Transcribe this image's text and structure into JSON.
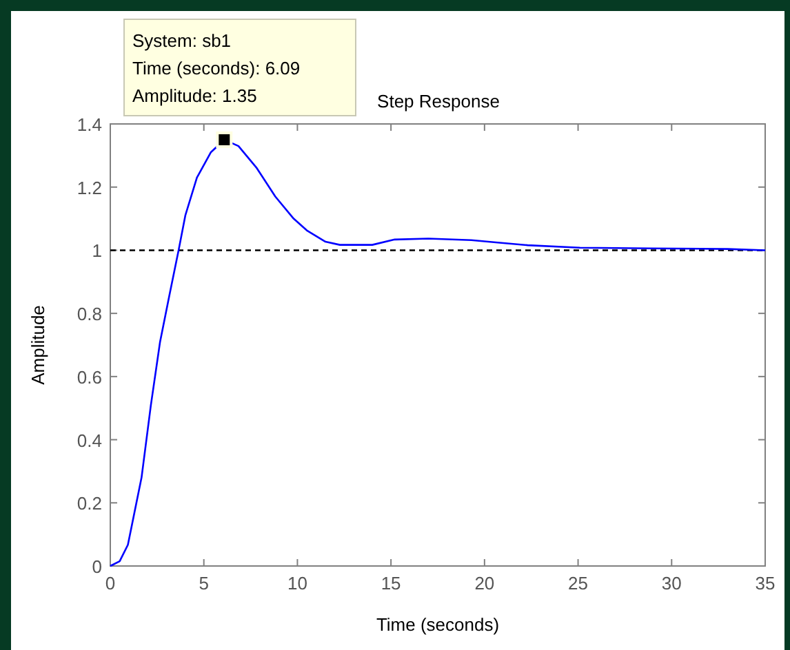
{
  "chart_data": {
    "type": "line",
    "title": "Step Response",
    "xlabel": "Time (seconds)",
    "ylabel": "Amplitude",
    "x": [
      0,
      0.5,
      0.94,
      1.67,
      2.17,
      2.66,
      3.15,
      3.65,
      4.01,
      4.63,
      5.37,
      6.09,
      6.85,
      7.83,
      8.82,
      9.8,
      10.5,
      11.5,
      12.27,
      14.0,
      15.2,
      17,
      19.3,
      20.6,
      22.3,
      25.1,
      29,
      33,
      35
    ],
    "series": [
      {
        "color": "#0000ff",
        "values": [
          0,
          0.015,
          0.067,
          0.28,
          0.51,
          0.71,
          0.855,
          1.0,
          1.11,
          1.23,
          1.31,
          1.35,
          1.33,
          1.26,
          1.17,
          1.1,
          1.063,
          1.027,
          1.017,
          1.017,
          1.034,
          1.037,
          1.032,
          1.025,
          1.016,
          1.008,
          1.006,
          1.004,
          1.0
        ]
      }
    ],
    "xlim": [
      0,
      35
    ],
    "xticks": [
      0,
      5,
      10,
      15,
      20,
      25,
      30,
      35
    ],
    "ylim": [
      0,
      1.4
    ],
    "yticks": [
      0,
      0.2,
      0.4,
      0.6,
      0.8,
      1,
      1.2,
      1.4
    ],
    "ref_lines": [
      {
        "axis": "y",
        "value": 1,
        "color": "#000000",
        "line_style": "dashed"
      }
    ],
    "annotations": [
      {
        "text": "System: sb1\nTime (seconds): 6.09\nAmplitude: 1.35",
        "x": 6.09,
        "y": 1.35
      }
    ],
    "grid": false,
    "marker": "none",
    "line_style": "solid"
  }
}
